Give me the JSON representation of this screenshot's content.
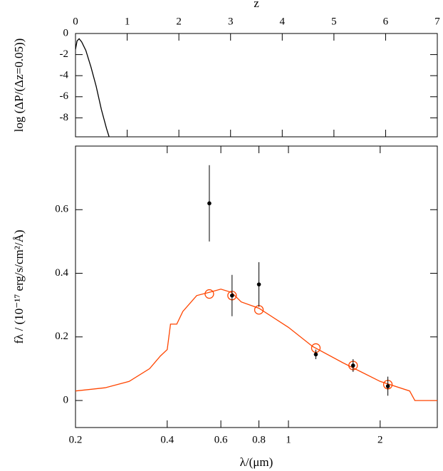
{
  "chart_data": [
    {
      "type": "line",
      "xaxis": "top",
      "xlabel": "z",
      "ylabel": "log (ΔP/(Δz=0.05))",
      "x": [
        0,
        0.03,
        0.07,
        0.12,
        0.2,
        0.3,
        0.4,
        0.5,
        0.6,
        0.65
      ],
      "series": [
        {
          "color": "#000000",
          "values": [
            -1.5,
            -0.7,
            -0.5,
            -0.8,
            -1.6,
            -3.2,
            -5.0,
            -7.2,
            -9.0,
            -9.8
          ]
        }
      ],
      "xlim": [
        0,
        7
      ],
      "ylim": [
        -9.8,
        0
      ],
      "xticks": [
        0,
        1,
        2,
        3,
        4,
        5,
        6,
        7
      ],
      "yticks": [
        0,
        -2,
        -4,
        -6,
        -8
      ]
    },
    {
      "type": "sed",
      "xscale": "log",
      "xlabel": "λ/(μm)",
      "ylabel": "fλ / (10⁻¹⁷ erg/s/cm²/Å)",
      "xlim": [
        0.2,
        3.08
      ],
      "ylim": [
        -0.085,
        0.8
      ],
      "xticks": [
        0.2,
        0.4,
        0.6,
        0.8,
        1,
        2
      ],
      "yticks": [
        0,
        0.2,
        0.4,
        0.6
      ],
      "series": [
        {
          "kind": "line",
          "color": "#ff4500",
          "x": [
            0.2,
            0.25,
            0.3,
            0.35,
            0.38,
            0.4,
            0.41,
            0.43,
            0.45,
            0.5,
            0.55,
            0.6,
            0.65,
            0.7,
            0.8,
            1.0,
            1.2,
            1.5,
            2.0,
            2.5,
            2.6,
            3.08
          ],
          "values": [
            0.03,
            0.04,
            0.06,
            0.1,
            0.14,
            0.16,
            0.24,
            0.24,
            0.28,
            0.33,
            0.34,
            0.35,
            0.34,
            0.31,
            0.29,
            0.23,
            0.17,
            0.12,
            0.06,
            0.03,
            0.0,
            0.0
          ]
        },
        {
          "kind": "circle",
          "color": "#ff4500",
          "x": [
            0.55,
            0.653,
            0.8,
            1.23,
            1.63,
            2.12
          ],
          "values": [
            0.335,
            0.33,
            0.285,
            0.165,
            0.11,
            0.05
          ]
        },
        {
          "kind": "errorbar",
          "color": "#000000",
          "x": [
            0.55,
            0.653,
            0.8,
            1.23,
            1.63,
            2.12
          ],
          "values": [
            0.62,
            0.33,
            0.365,
            0.145,
            0.11,
            0.045
          ],
          "errors": [
            0.12,
            0.065,
            0.07,
            0.015,
            0.02,
            0.03
          ]
        }
      ]
    }
  ]
}
